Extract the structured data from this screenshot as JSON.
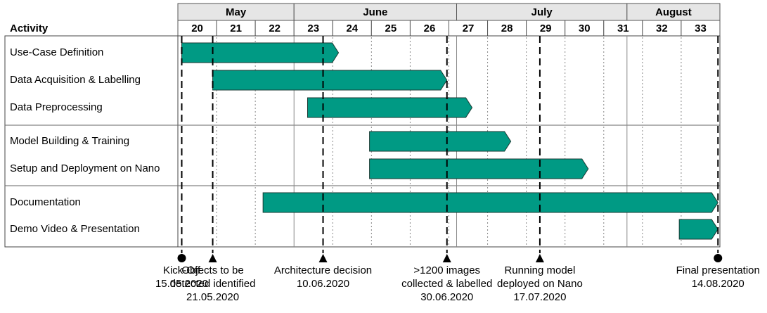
{
  "header": {
    "activity_label": "Activity"
  },
  "months": [
    {
      "name": "May",
      "start": 20,
      "end": 23
    },
    {
      "name": "June",
      "start": 23,
      "end": 27.2
    },
    {
      "name": "July",
      "start": 27.2,
      "end": 31.6
    },
    {
      "name": "August",
      "start": 31.6,
      "end": 34
    }
  ],
  "weeks": [
    "20",
    "21",
    "22",
    "23",
    "24",
    "25",
    "26",
    "27",
    "28",
    "29",
    "30",
    "31",
    "32",
    "33"
  ],
  "bar_color": "#009a84",
  "tasks": [
    {
      "name": "Use-Case Definition",
      "group": 0,
      "start": 20.1,
      "end": 24.15
    },
    {
      "name": "Data Acquisition & Labelling",
      "group": 0,
      "start": 20.9,
      "end": 26.95
    },
    {
      "name": "Data Preprocessing",
      "group": 0,
      "start": 23.35,
      "end": 27.6
    },
    {
      "name": "Model Building & Training",
      "group": 1,
      "start": 24.95,
      "end": 28.6
    },
    {
      "name": "Setup and Deployment on Nano",
      "group": 1,
      "start": 24.95,
      "end": 30.6
    },
    {
      "name": "Documentation",
      "group": 2,
      "start": 22.2,
      "end": 33.95
    },
    {
      "name": "Demo Video & Presentation",
      "group": 2,
      "start": 32.95,
      "end": 33.95
    }
  ],
  "milestones": [
    {
      "x": 20.1,
      "marker": "circle",
      "lines": [
        "Kick-Off",
        "15.05.2020"
      ]
    },
    {
      "x": 20.9,
      "marker": "triangle",
      "lines": [
        "Objects to be",
        "detected identified",
        "21.05.2020"
      ]
    },
    {
      "x": 23.75,
      "marker": "triangle",
      "lines": [
        "Architecture decision",
        "10.06.2020"
      ]
    },
    {
      "x": 26.95,
      "marker": "triangle",
      "lines": [
        ">1200 images",
        "collected & labelled",
        "30.06.2020"
      ]
    },
    {
      "x": 29.35,
      "marker": "triangle",
      "lines": [
        "Running model",
        "deployed on Nano",
        "17.07.2020"
      ]
    },
    {
      "x": 33.95,
      "marker": "circle",
      "lines": [
        "Final presentation",
        "14.08.2020"
      ]
    }
  ]
}
